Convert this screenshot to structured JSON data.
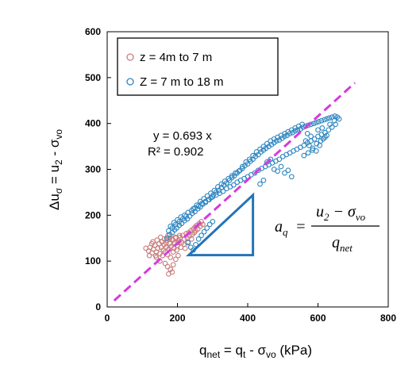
{
  "chart_data": {
    "type": "scatter",
    "xlabel": {
      "main": "q",
      "main_sub": "net",
      "eq": " = q",
      "sub_t": "t",
      "minus": " - σ",
      "sub_vo": "vo",
      "unit": " (kPa)"
    },
    "ylabel": {
      "main": "Δu",
      "main_sub": "σ",
      "eq": " = u",
      "sub_2": "2",
      "minus": " - σ",
      "sub_vo": "vo"
    },
    "xlim": [
      0,
      800
    ],
    "ylim": [
      0,
      600
    ],
    "x_ticks": [
      "0",
      "200",
      "400",
      "600",
      "800"
    ],
    "y_ticks": [
      "0",
      "100",
      "200",
      "300",
      "400",
      "500",
      "600"
    ],
    "x_tick_values": [
      0,
      200,
      400,
      600,
      800
    ],
    "y_tick_values": [
      0,
      100,
      200,
      300,
      400,
      500,
      600
    ],
    "grid": false,
    "legend_position": "top-left",
    "series": [
      {
        "name": "z = 4m to 7 m",
        "marker": "open-circle",
        "color": "#c87d7d",
        "points": [
          [
            110,
            128
          ],
          [
            118,
            122
          ],
          [
            122,
            130
          ],
          [
            128,
            118
          ],
          [
            132,
            126
          ],
          [
            136,
            134
          ],
          [
            140,
            120
          ],
          [
            144,
            128
          ],
          [
            148,
            138
          ],
          [
            150,
            116
          ],
          [
            154,
            130
          ],
          [
            156,
            142
          ],
          [
            160,
            124
          ],
          [
            162,
            136
          ],
          [
            165,
            120
          ],
          [
            168,
            130
          ],
          [
            170,
            146
          ],
          [
            172,
            114
          ],
          [
            175,
            126
          ],
          [
            178,
            138
          ],
          [
            180,
            108
          ],
          [
            182,
            132
          ],
          [
            185,
            148
          ],
          [
            188,
            120
          ],
          [
            190,
            128
          ],
          [
            192,
            140
          ],
          [
            195,
            150
          ],
          [
            198,
            124
          ],
          [
            200,
            134
          ],
          [
            202,
            112
          ],
          [
            205,
            144
          ],
          [
            208,
            152
          ],
          [
            210,
            130
          ],
          [
            212,
            140
          ],
          [
            215,
            156
          ],
          [
            218,
            136
          ],
          [
            220,
            148
          ],
          [
            222,
            128
          ],
          [
            225,
            160
          ],
          [
            228,
            150
          ],
          [
            230,
            142
          ],
          [
            232,
            162
          ],
          [
            235,
            155
          ],
          [
            238,
            166
          ],
          [
            240,
            148
          ],
          [
            242,
            158
          ],
          [
            245,
            170
          ],
          [
            248,
            162
          ],
          [
            250,
            174
          ],
          [
            252,
            166
          ],
          [
            255,
            178
          ],
          [
            258,
            170
          ],
          [
            262,
            182
          ],
          [
            265,
            176
          ],
          [
            268,
            186
          ],
          [
            272,
            180
          ],
          [
            140,
            108
          ],
          [
            150,
            100
          ],
          [
            158,
            112
          ],
          [
            165,
            95
          ],
          [
            172,
            88
          ],
          [
            180,
            82
          ],
          [
            185,
            76
          ],
          [
            175,
            72
          ],
          [
            188,
            92
          ],
          [
            195,
            104
          ],
          [
            168,
            140
          ],
          [
            178,
            150
          ],
          [
            186,
            146
          ],
          [
            194,
            152
          ],
          [
            200,
            140
          ],
          [
            206,
            156
          ],
          [
            130,
            142
          ],
          [
            142,
            146
          ],
          [
            152,
            152
          ],
          [
            163,
            148
          ],
          [
            173,
            156
          ],
          [
            120,
            112
          ],
          [
            127,
            138
          ],
          [
            138,
            112
          ]
        ]
      },
      {
        "name": "Z = 7 m to 18 m",
        "marker": "open-circle",
        "color": "#2e86c1",
        "points": [
          [
            170,
            150
          ],
          [
            178,
            158
          ],
          [
            185,
            162
          ],
          [
            192,
            168
          ],
          [
            198,
            172
          ],
          [
            205,
            178
          ],
          [
            212,
            182
          ],
          [
            220,
            188
          ],
          [
            228,
            192
          ],
          [
            235,
            198
          ],
          [
            242,
            204
          ],
          [
            250,
            208
          ],
          [
            258,
            214
          ],
          [
            265,
            218
          ],
          [
            272,
            224
          ],
          [
            280,
            228
          ],
          [
            288,
            234
          ],
          [
            295,
            238
          ],
          [
            302,
            244
          ],
          [
            310,
            250
          ],
          [
            318,
            254
          ],
          [
            325,
            260
          ],
          [
            332,
            266
          ],
          [
            340,
            270
          ],
          [
            348,
            276
          ],
          [
            355,
            282
          ],
          [
            362,
            286
          ],
          [
            370,
            292
          ],
          [
            378,
            298
          ],
          [
            385,
            302
          ],
          [
            392,
            308
          ],
          [
            400,
            312
          ],
          [
            408,
            318
          ],
          [
            415,
            322
          ],
          [
            422,
            328
          ],
          [
            430,
            332
          ],
          [
            438,
            338
          ],
          [
            445,
            342
          ],
          [
            452,
            346
          ],
          [
            460,
            350
          ],
          [
            468,
            354
          ],
          [
            475,
            358
          ],
          [
            482,
            362
          ],
          [
            490,
            364
          ],
          [
            498,
            368
          ],
          [
            505,
            372
          ],
          [
            512,
            374
          ],
          [
            520,
            378
          ],
          [
            528,
            380
          ],
          [
            535,
            384
          ],
          [
            542,
            386
          ],
          [
            550,
            388
          ],
          [
            558,
            392
          ],
          [
            565,
            394
          ],
          [
            572,
            396
          ],
          [
            580,
            398
          ],
          [
            588,
            400
          ],
          [
            595,
            402
          ],
          [
            602,
            404
          ],
          [
            610,
            406
          ],
          [
            618,
            408
          ],
          [
            625,
            410
          ],
          [
            632,
            412
          ],
          [
            640,
            414
          ],
          [
            648,
            416
          ],
          [
            655,
            414
          ],
          [
            660,
            410
          ],
          [
            650,
            398
          ],
          [
            640,
            392
          ],
          [
            630,
            386
          ],
          [
            620,
            380
          ],
          [
            610,
            376
          ],
          [
            600,
            372
          ],
          [
            590,
            366
          ],
          [
            580,
            362
          ],
          [
            570,
            358
          ],
          [
            560,
            352
          ],
          [
            550,
            348
          ],
          [
            540,
            344
          ],
          [
            530,
            340
          ],
          [
            520,
            336
          ],
          [
            510,
            332
          ],
          [
            500,
            328
          ],
          [
            490,
            322
          ],
          [
            480,
            318
          ],
          [
            470,
            314
          ],
          [
            460,
            310
          ],
          [
            450,
            306
          ],
          [
            440,
            302
          ],
          [
            430,
            298
          ],
          [
            420,
            292
          ],
          [
            410,
            288
          ],
          [
            400,
            284
          ],
          [
            390,
            280
          ],
          [
            380,
            276
          ],
          [
            370,
            272
          ],
          [
            360,
            266
          ],
          [
            350,
            262
          ],
          [
            340,
            258
          ],
          [
            330,
            252
          ],
          [
            320,
            248
          ],
          [
            310,
            244
          ],
          [
            300,
            240
          ],
          [
            290,
            234
          ],
          [
            280,
            230
          ],
          [
            270,
            226
          ],
          [
            260,
            220
          ],
          [
            250,
            216
          ],
          [
            240,
            210
          ],
          [
            230,
            206
          ],
          [
            220,
            200
          ],
          [
            210,
            196
          ],
          [
            200,
            190
          ],
          [
            190,
            184
          ],
          [
            180,
            176
          ],
          [
            175,
            166
          ],
          [
            185,
            172
          ],
          [
            195,
            180
          ],
          [
            205,
            186
          ],
          [
            215,
            192
          ],
          [
            225,
            198
          ],
          [
            245,
            214
          ],
          [
            255,
            222
          ],
          [
            265,
            230
          ],
          [
            275,
            236
          ],
          [
            285,
            242
          ],
          [
            295,
            248
          ],
          [
            305,
            254
          ],
          [
            315,
            262
          ],
          [
            325,
            268
          ],
          [
            335,
            274
          ],
          [
            345,
            280
          ],
          [
            355,
            286
          ],
          [
            365,
            292
          ],
          [
            375,
            296
          ],
          [
            385,
            306
          ],
          [
            395,
            316
          ],
          [
            405,
            322
          ],
          [
            415,
            330
          ],
          [
            425,
            338
          ],
          [
            435,
            344
          ],
          [
            445,
            350
          ],
          [
            455,
            356
          ],
          [
            465,
            362
          ],
          [
            475,
            366
          ],
          [
            485,
            370
          ],
          [
            495,
            374
          ],
          [
            505,
            378
          ],
          [
            515,
            382
          ],
          [
            525,
            386
          ],
          [
            535,
            390
          ],
          [
            545,
            394
          ],
          [
            555,
            398
          ],
          [
            565,
            362
          ],
          [
            575,
            352
          ],
          [
            585,
            346
          ],
          [
            595,
            340
          ],
          [
            605,
            352
          ],
          [
            615,
            366
          ],
          [
            625,
            374
          ],
          [
            455,
            316
          ],
          [
            465,
            322
          ],
          [
            475,
            300
          ],
          [
            485,
            296
          ],
          [
            495,
            306
          ],
          [
            505,
            292
          ],
          [
            515,
            298
          ],
          [
            525,
            284
          ],
          [
            445,
            276
          ],
          [
            435,
            268
          ],
          [
            230,
            140
          ],
          [
            238,
            130
          ],
          [
            245,
            124
          ],
          [
            252,
            136
          ],
          [
            260,
            148
          ],
          [
            268,
            156
          ],
          [
            276,
            164
          ],
          [
            284,
            172
          ],
          [
            292,
            180
          ],
          [
            300,
            186
          ],
          [
            560,
            330
          ],
          [
            572,
            336
          ],
          [
            584,
            342
          ],
          [
            596,
            356
          ],
          [
            608,
            362
          ],
          [
            620,
            370
          ],
          [
            580,
            372
          ],
          [
            570,
            378
          ],
          [
            600,
            386
          ],
          [
            612,
            390
          ],
          [
            634,
            398
          ],
          [
            646,
            406
          ]
        ]
      }
    ],
    "trendline": {
      "label_y": "y  =  0.693 x",
      "label_r2": "R²  = 0.902",
      "slope": 0.693,
      "x_range": [
        20,
        705
      ],
      "color": "#d63bdc"
    },
    "slope_triangle": {
      "color": "#2474b8",
      "vertices_data": [
        [
          232,
          113
        ],
        [
          415,
          113
        ],
        [
          415,
          244
        ]
      ]
    },
    "formula": {
      "lhs": "a",
      "lhs_sub": "q",
      "eq": "=",
      "num": "u",
      "num_sub": "2",
      "num_minus": " − σ",
      "num_sub_vo": "vo",
      "den": "q",
      "den_sub": "net"
    }
  }
}
